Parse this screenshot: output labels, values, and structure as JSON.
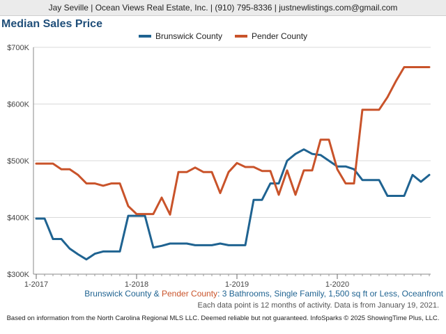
{
  "header": {
    "text": "Jay Seville | Ocean Views Real Estate, Inc. | (910) 795-8336 | justnewlistings.com@gmail.com"
  },
  "chart_data": {
    "type": "line",
    "title": "Median Sales Price",
    "x": [
      "2017-01",
      "2017-02",
      "2017-03",
      "2017-04",
      "2017-05",
      "2017-06",
      "2017-07",
      "2017-08",
      "2017-09",
      "2017-10",
      "2017-11",
      "2017-12",
      "2018-01",
      "2018-02",
      "2018-03",
      "2018-04",
      "2018-05",
      "2018-06",
      "2018-07",
      "2018-08",
      "2018-09",
      "2018-10",
      "2018-11",
      "2018-12",
      "2019-01",
      "2019-02",
      "2019-03",
      "2019-04",
      "2019-05",
      "2019-06",
      "2019-07",
      "2019-08",
      "2019-09",
      "2019-10",
      "2019-11",
      "2019-12",
      "2020-01",
      "2020-02",
      "2020-03",
      "2020-04",
      "2020-05",
      "2020-06",
      "2020-07",
      "2020-08",
      "2020-09",
      "2020-10",
      "2020-11",
      "2020-12"
    ],
    "xticks": [
      "1-2017",
      "1-2018",
      "1-2019",
      "1-2020"
    ],
    "yticks": [
      "$300K",
      "$400K",
      "$500K",
      "$600K",
      "$700K"
    ],
    "ylim": [
      300000,
      700000
    ],
    "grid": true,
    "legend_position": "top",
    "series": [
      {
        "name": "Brunswick County",
        "color": "#1f6391",
        "values": [
          398000,
          398000,
          362000,
          362000,
          345000,
          335000,
          326000,
          336000,
          340000,
          340000,
          340000,
          403000,
          403000,
          403000,
          347000,
          350000,
          354000,
          354000,
          354000,
          351000,
          351000,
          351000,
          354000,
          351000,
          351000,
          351000,
          431000,
          431000,
          460000,
          460000,
          500000,
          512000,
          520000,
          512000,
          510000,
          500000,
          490000,
          490000,
          485000,
          466000,
          466000,
          466000,
          438000,
          438000,
          438000,
          475000,
          463000,
          475000
        ]
      },
      {
        "name": "Pender County",
        "color": "#c9532a",
        "values": [
          495000,
          495000,
          495000,
          485000,
          485000,
          475000,
          460000,
          460000,
          456000,
          460000,
          460000,
          420000,
          406000,
          406000,
          406000,
          435000,
          405000,
          480000,
          480000,
          488000,
          480000,
          480000,
          443000,
          480000,
          496000,
          489000,
          489000,
          482000,
          482000,
          440000,
          483000,
          440000,
          483000,
          483000,
          537000,
          537000,
          485000,
          460000,
          460000,
          590000,
          590000,
          590000,
          612000,
          640000,
          665000,
          665000,
          665000,
          665000
        ]
      }
    ]
  },
  "subtitle": {
    "part_a": "Brunswick County",
    "sep": " & ",
    "part_b": "Pender County",
    "rest": ": 3 Bathrooms, Single Family, 1,500 sq ft or Less, Oceanfront"
  },
  "note": "Each data point is 12 months of activity. Data is from January 19, 2021.",
  "footer": "Based on information from the North Carolina Regional MLS LLC. Deemed reliable but not guaranteed. InfoSparks © 2025 ShowingTime Plus, LLC."
}
